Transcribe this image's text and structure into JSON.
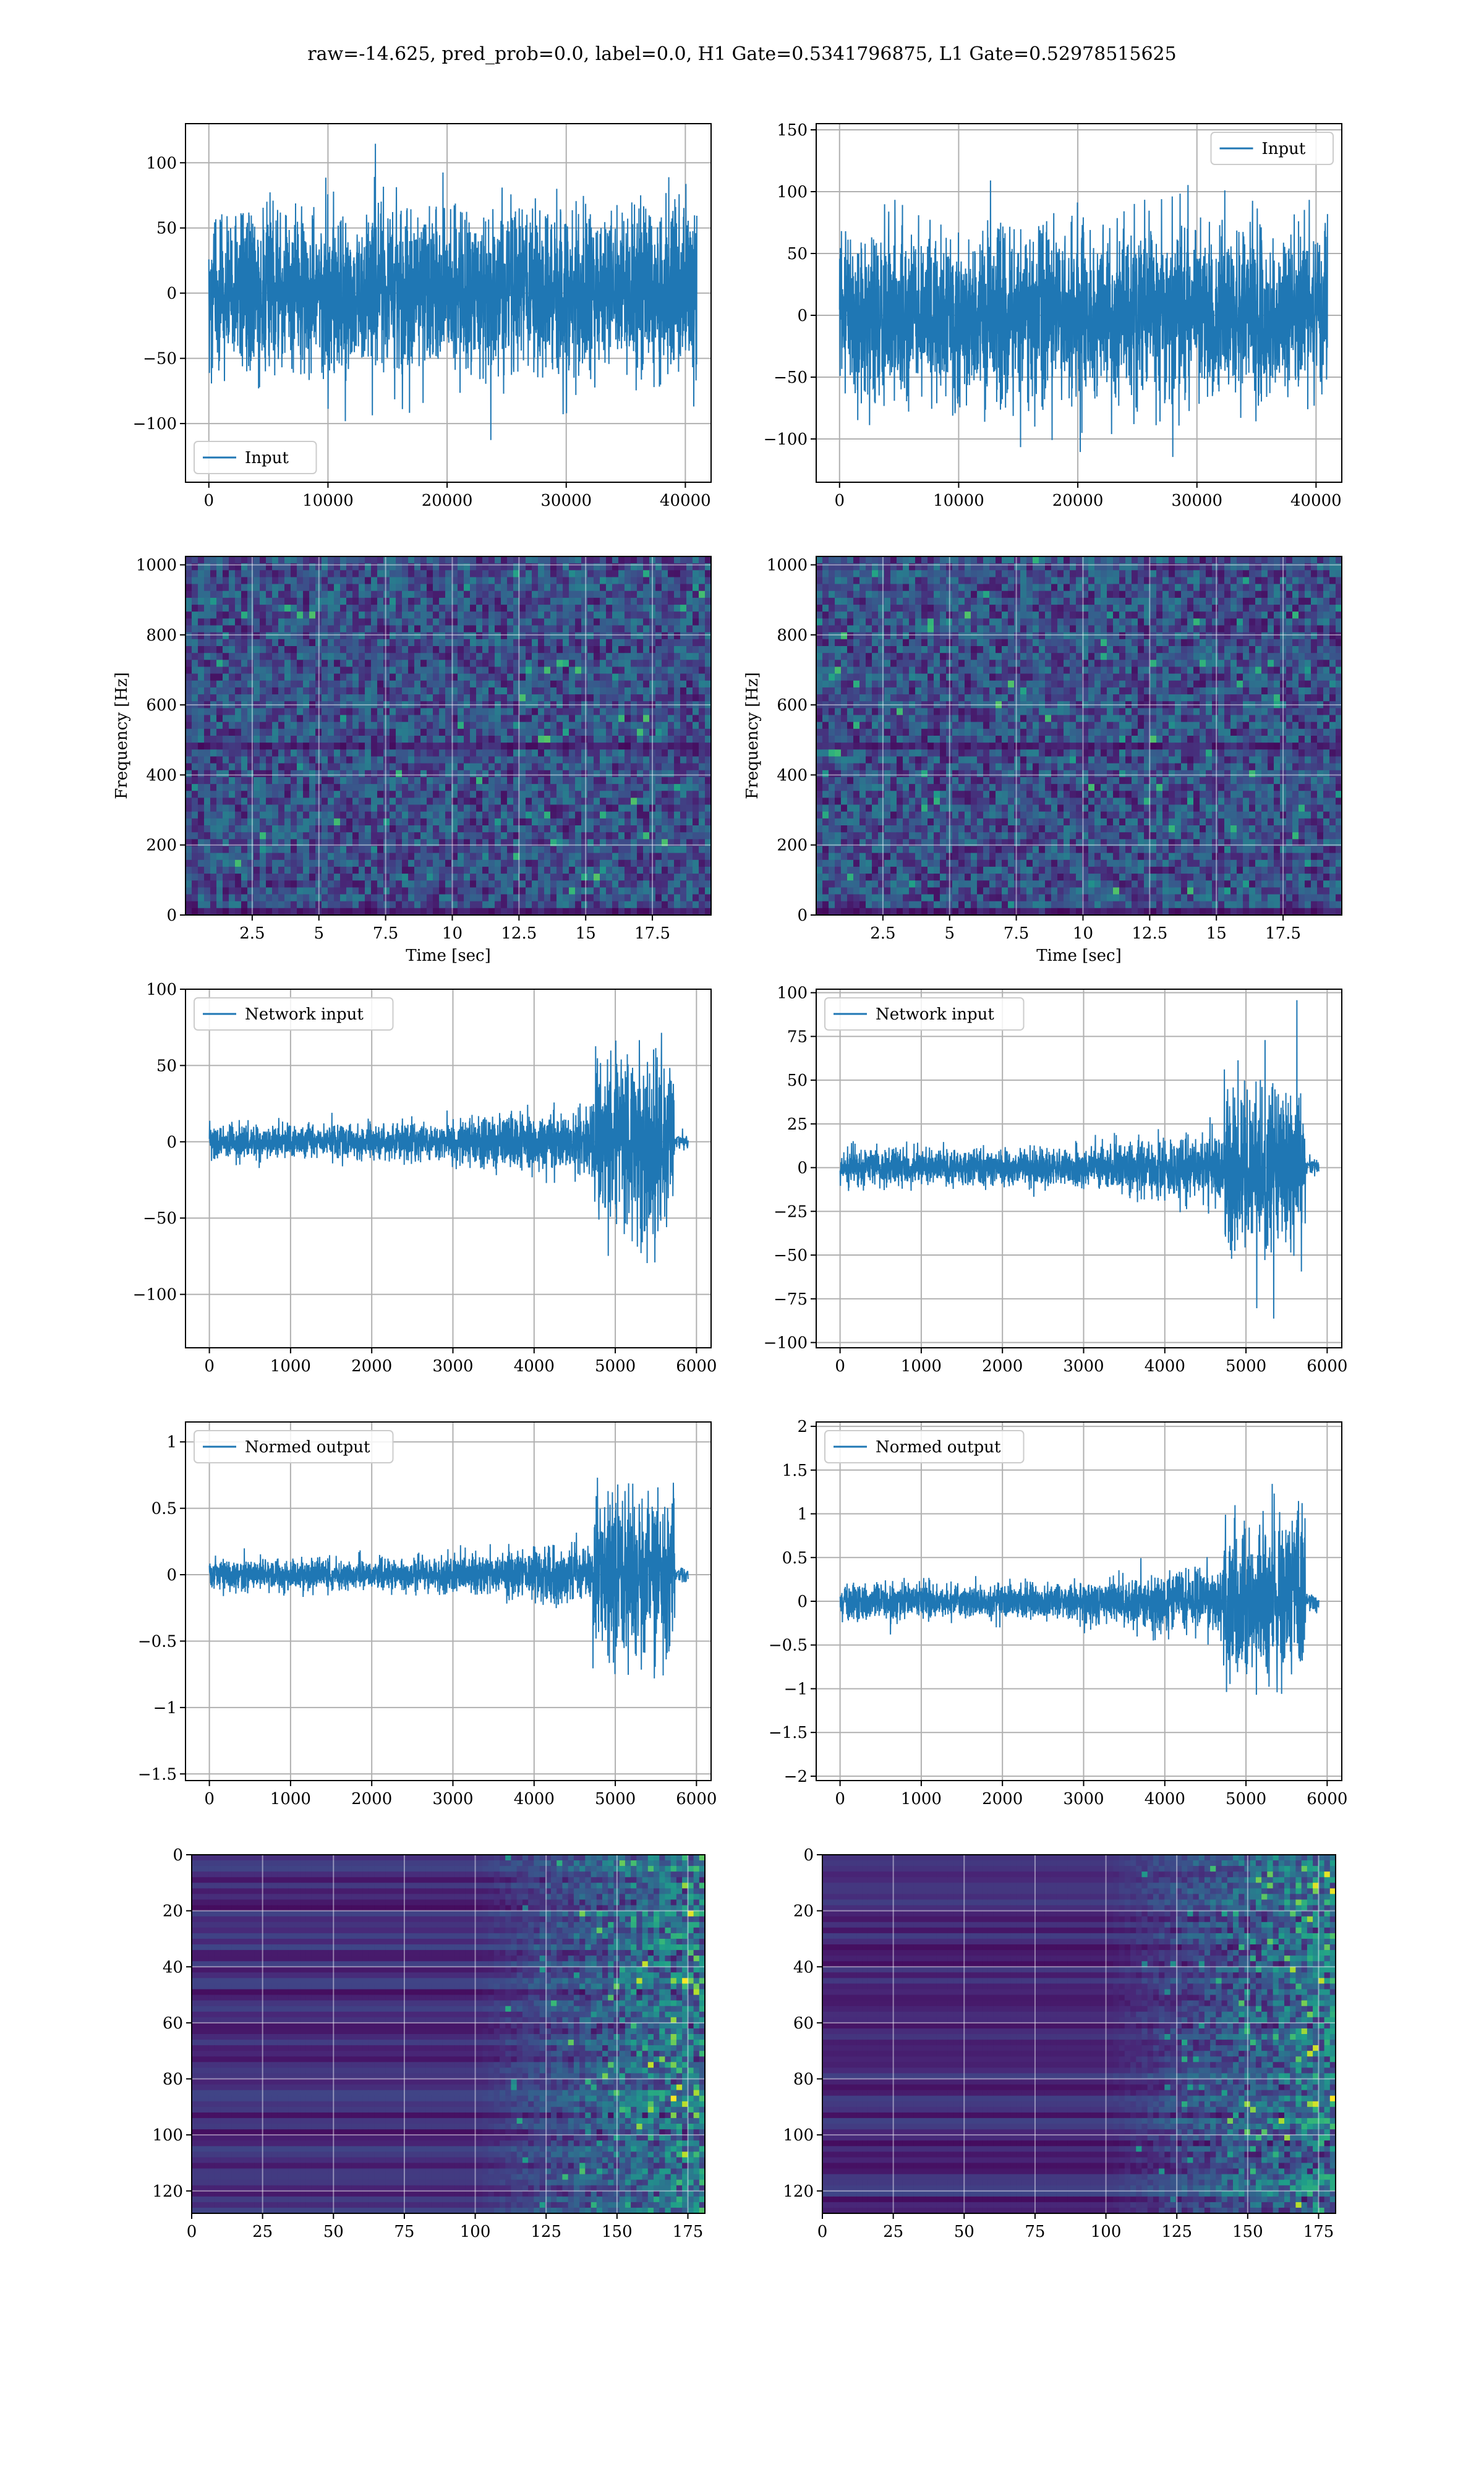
{
  "figure": {
    "title": "raw=-14.625, pred_prob=0.0, label=0.0, H1 Gate=0.5341796875, L1 Gate=0.52978515625",
    "colors": {
      "line": "#1f77b4",
      "grid": "#b0b0b0",
      "viridis_dark": "#440154"
    }
  },
  "chart_data": [
    {
      "id": "input-h1",
      "type": "line",
      "legend": "Input",
      "legend_loc": "lower-left",
      "x_range": [
        0,
        40960
      ],
      "amplitude": 45,
      "ylim": [
        -145,
        130
      ],
      "xticks": [
        0,
        10000,
        20000,
        30000,
        40000
      ],
      "yticks": [
        -100,
        -50,
        0,
        50,
        100
      ],
      "xlabel": "",
      "ylabel": "",
      "grid": true
    },
    {
      "id": "input-l1",
      "type": "line",
      "legend": "Input",
      "legend_loc": "upper-right",
      "x_range": [
        0,
        40960
      ],
      "amplitude": 48,
      "ylim": [
        -135,
        155
      ],
      "xticks": [
        0,
        10000,
        20000,
        30000,
        40000
      ],
      "yticks": [
        -100,
        -50,
        0,
        50,
        100,
        150
      ],
      "xlabel": "",
      "ylabel": "",
      "grid": true
    },
    {
      "id": "spec-h1",
      "type": "heatmap",
      "colormap": "viridis",
      "xlim": [
        0,
        19.7
      ],
      "ylim": [
        0,
        1024
      ],
      "xticks": [
        2.5,
        5.0,
        7.5,
        10.0,
        12.5,
        15.0,
        17.5
      ],
      "yticks": [
        0,
        200,
        400,
        600,
        800,
        1000
      ],
      "xlabel": "Time [sec]",
      "ylabel": "Frequency [Hz]",
      "grid": true
    },
    {
      "id": "spec-l1",
      "type": "heatmap",
      "colormap": "viridis",
      "xlim": [
        0,
        19.7
      ],
      "ylim": [
        0,
        1024
      ],
      "xticks": [
        2.5,
        5.0,
        7.5,
        10.0,
        12.5,
        15.0,
        17.5
      ],
      "yticks": [
        0,
        200,
        400,
        600,
        800,
        1000
      ],
      "xlabel": "Time [sec]",
      "ylabel": "Frequency [Hz]",
      "grid": true
    },
    {
      "id": "net-h1",
      "type": "line",
      "legend": "Network input",
      "legend_loc": "upper-left",
      "x_range": [
        0,
        5760
      ],
      "ylim": [
        -135,
        100
      ],
      "base_amp": 8,
      "peak_amp": 40,
      "xticks": [
        0,
        1000,
        2000,
        3000,
        4000,
        5000,
        6000
      ],
      "yticks": [
        -100,
        -50,
        0,
        50,
        100
      ],
      "xlabel": "",
      "ylabel": "",
      "grid": true
    },
    {
      "id": "net-l1",
      "type": "line",
      "legend": "Network input",
      "legend_loc": "upper-left",
      "x_range": [
        0,
        5760
      ],
      "ylim": [
        -103,
        102
      ],
      "base_amp": 7,
      "peak_amp": 32,
      "xticks": [
        0,
        1000,
        2000,
        3000,
        4000,
        5000,
        6000
      ],
      "yticks": [
        -100,
        -75,
        -50,
        -25,
        0,
        25,
        50,
        75,
        100
      ],
      "xlabel": "",
      "ylabel": "",
      "grid": true
    },
    {
      "id": "norm-h1",
      "type": "line",
      "legend": "Normed output",
      "legend_loc": "upper-left",
      "x_range": [
        0,
        5760
      ],
      "ylim": [
        -1.55,
        1.15
      ],
      "base_amp": 0.08,
      "peak_amp": 0.42,
      "xticks": [
        0,
        1000,
        2000,
        3000,
        4000,
        5000,
        6000
      ],
      "yticks": [
        -1.5,
        -1.0,
        -0.5,
        0.0,
        0.5,
        1.0
      ],
      "xlabel": "",
      "ylabel": "",
      "grid": true
    },
    {
      "id": "norm-l1",
      "type": "line",
      "legend": "Normed output",
      "legend_loc": "upper-left",
      "x_range": [
        0,
        5760
      ],
      "ylim": [
        -2.05,
        2.05
      ],
      "base_amp": 0.14,
      "peak_amp": 0.62,
      "xticks": [
        0,
        1000,
        2000,
        3000,
        4000,
        5000,
        6000
      ],
      "yticks": [
        -2.0,
        -1.5,
        -1.0,
        -0.5,
        0.0,
        0.5,
        1.0,
        1.5,
        2.0
      ],
      "xlabel": "",
      "ylabel": "",
      "grid": true
    },
    {
      "id": "qt-h1",
      "type": "heatmap",
      "colormap": "viridis",
      "xlim": [
        0,
        181
      ],
      "ylim": [
        128,
        0
      ],
      "xticks": [
        0,
        25,
        50,
        75,
        100,
        125,
        150,
        175
      ],
      "yticks": [
        0,
        20,
        40,
        60,
        80,
        100,
        120
      ],
      "xlabel": "",
      "ylabel": "",
      "grid": true
    },
    {
      "id": "qt-l1",
      "type": "heatmap",
      "colormap": "viridis",
      "xlim": [
        0,
        181
      ],
      "ylim": [
        128,
        0
      ],
      "xticks": [
        0,
        25,
        50,
        75,
        100,
        125,
        150,
        175
      ],
      "yticks": [
        0,
        20,
        40,
        60,
        80,
        100,
        120
      ],
      "xlabel": "",
      "ylabel": "",
      "grid": true
    }
  ]
}
